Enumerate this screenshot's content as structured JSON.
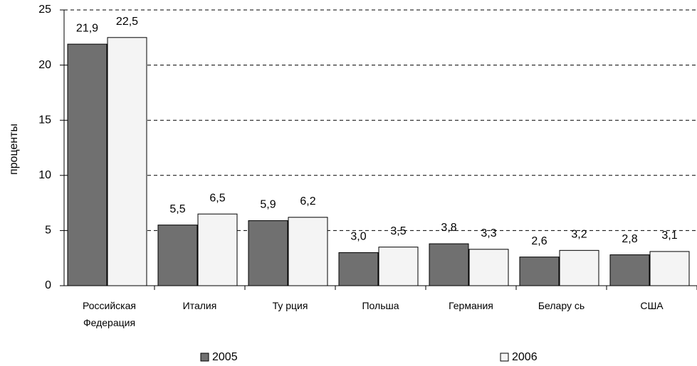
{
  "chart_data": {
    "type": "bar",
    "y_label": "проценты",
    "categories": [
      "Российская Федерация",
      "Италия",
      "Ту рция",
      "Польша",
      "Германия",
      "Белару сь",
      "США"
    ],
    "series": [
      {
        "name": "2005",
        "color": "#707070",
        "values": [
          21.9,
          5.5,
          5.9,
          3.0,
          3.8,
          2.6,
          2.8
        ],
        "value_labels": [
          "21,9",
          "5,5",
          "5,9",
          "3,0",
          "3,8",
          "2,6",
          "2,8"
        ]
      },
      {
        "name": "2006",
        "color": "#f4f4f4",
        "values": [
          22.5,
          6.5,
          6.2,
          3.5,
          3.3,
          3.2,
          3.1
        ],
        "value_labels": [
          "22,5",
          "6,5",
          "6,2",
          "3,5",
          "3,3",
          "3,2",
          "3,1"
        ]
      }
    ],
    "ylim": [
      0,
      25
    ],
    "yticks": [
      0,
      5,
      10,
      15,
      20,
      25
    ],
    "grid": true,
    "legend": "bottom"
  }
}
